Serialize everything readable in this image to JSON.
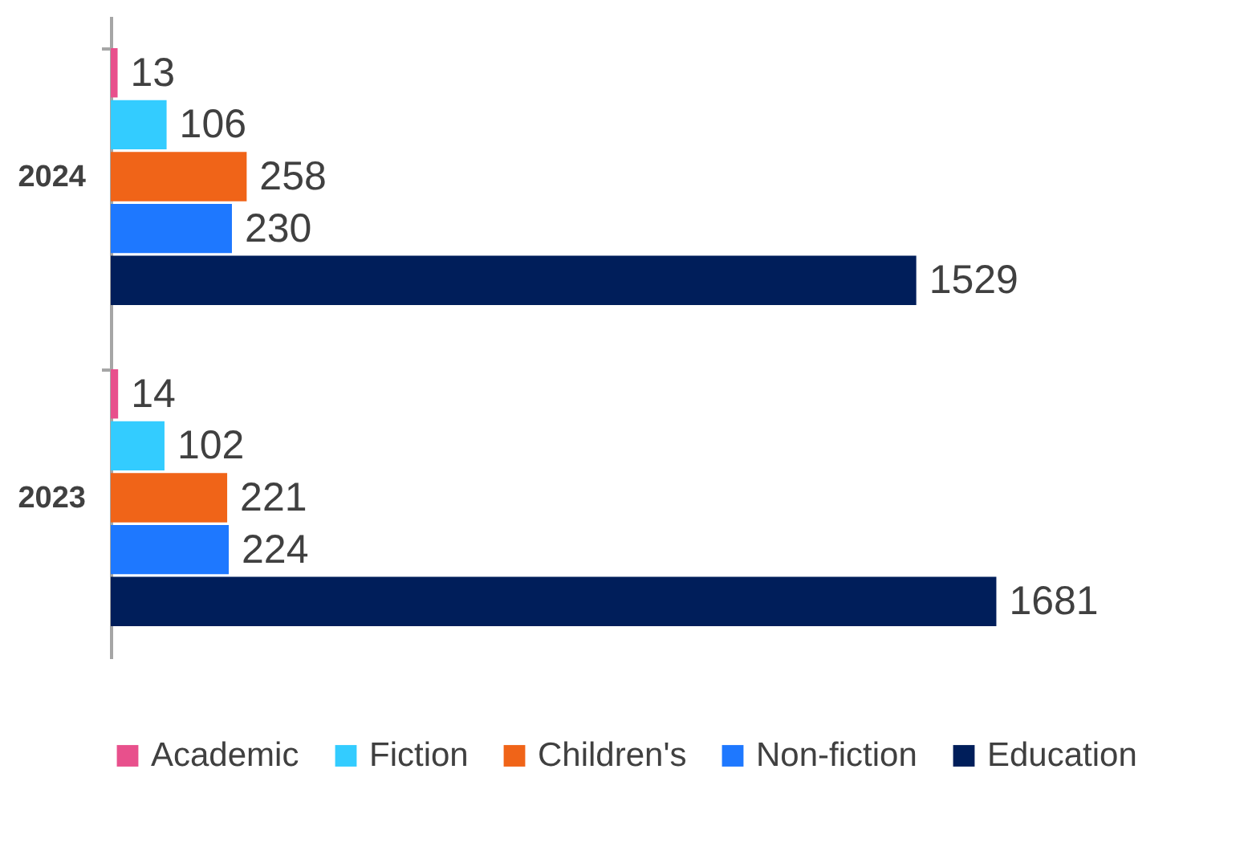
{
  "chart_data": {
    "type": "bar",
    "orientation": "horizontal",
    "categories": [
      "2024",
      "2023"
    ],
    "series": [
      {
        "name": "Academic",
        "color": "#e8508c",
        "values": [
          13,
          14
        ]
      },
      {
        "name": "Fiction",
        "color": "#33ccff",
        "values": [
          106,
          102
        ]
      },
      {
        "name": "Children's",
        "color": "#f06418",
        "values": [
          258,
          221
        ]
      },
      {
        "name": "Non-fiction",
        "color": "#1e78ff",
        "values": [
          230,
          224
        ]
      },
      {
        "name": "Education",
        "color": "#001e5a",
        "values": [
          1529,
          1681
        ]
      }
    ],
    "data_labels": true,
    "legend": "bottom",
    "grid": false
  }
}
